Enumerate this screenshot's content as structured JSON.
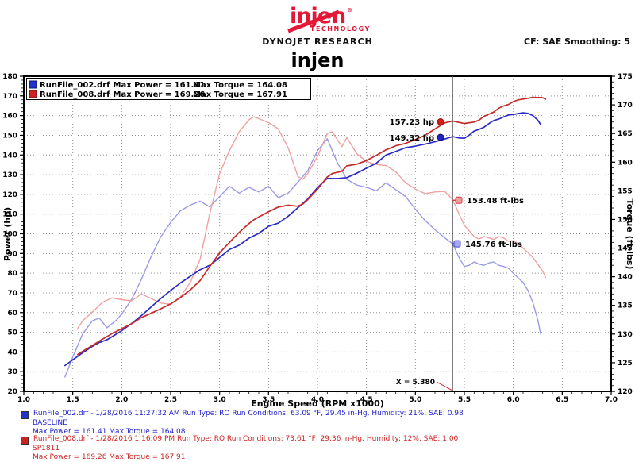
{
  "header": {
    "logo": {
      "brand": "injen",
      "mark": "®",
      "sub": "TECHNOLOGY"
    },
    "dyno_lab": "DYNOJET RESEARCH",
    "cf_label": "CF: SAE  Smoothing: 5",
    "title": "injen"
  },
  "chart": {
    "ylabel_left": "Power (hp)",
    "ylabel_right": "Torque (ft-lbs)",
    "xlabel": "Engine Speed (RPM x1000)",
    "legend_rows": [
      {
        "file": "RunFile_002.drf",
        "power": "Max Power = 161.41",
        "torque": "Max Torque = 164.08",
        "color": "#2233cc"
      },
      {
        "file": "RunFile_008.drf",
        "power": "Max Power = 169.26",
        "torque": "Max Torque = 167.91",
        "color": "#cc2222"
      }
    ],
    "cursor_label": "X = 5.380",
    "annotations": {
      "red_power": "157.23 hp",
      "blue_power": "149.32 hp",
      "red_torque": "153.48 ft-lbs",
      "blue_torque": "145.76 ft-lbs"
    },
    "colors": {
      "power_blue": "#2a2ac8",
      "torque_blue": "#9a9ae6",
      "power_red": "#c82a2a",
      "torque_red": "#f0a0a0",
      "grid": "#909090",
      "cursor": "#555555"
    }
  },
  "chart_data": {
    "type": "line",
    "title": "injen",
    "xlabel": "Engine Speed (RPM x1000)",
    "x_range": [
      1.0,
      7.0
    ],
    "power_axis": {
      "label": "Power (hp)",
      "range": [
        20,
        180
      ],
      "tick_step": 10
    },
    "torque_axis": {
      "label": "Torque (ft-lbs)",
      "range": [
        120,
        175
      ],
      "tick_step": 5
    },
    "grid": "dotted",
    "legend_position": "top-left",
    "cursor_x": 5.38,
    "power_ticks": [
      180,
      170,
      160,
      150,
      140,
      130,
      120,
      110,
      100,
      90,
      80,
      70,
      60,
      50,
      40,
      30,
      20
    ],
    "torque_ticks": [
      175,
      170,
      165,
      160,
      155,
      150,
      145,
      140,
      135,
      130,
      125,
      120
    ],
    "rpm_ticks": [
      "1.0",
      "1.5",
      "2.0",
      "2.5",
      "3.0",
      "3.5",
      "4.0",
      "4.5",
      "5.0",
      "5.5",
      "6.0",
      "6.5",
      "7.0"
    ],
    "series": [
      {
        "name": "RunFile_002.drf Torque",
        "axis": "torque",
        "color": "#9a9ae6",
        "x": [
          1.42,
          1.5,
          1.6,
          1.7,
          1.77,
          1.85,
          1.95,
          2.0,
          2.1,
          2.2,
          2.3,
          2.4,
          2.5,
          2.6,
          2.7,
          2.8,
          2.9,
          3.0,
          3.1,
          3.2,
          3.3,
          3.4,
          3.5,
          3.6,
          3.7,
          3.8,
          3.9,
          4.0,
          4.1,
          4.2,
          4.3,
          4.4,
          4.5,
          4.6,
          4.7,
          4.8,
          4.9,
          5.0,
          5.1,
          5.2,
          5.3,
          5.38,
          5.45,
          5.5,
          5.55,
          5.6,
          5.65,
          5.7,
          5.75,
          5.8,
          5.85,
          5.9,
          5.95,
          6.0,
          6.05,
          6.1,
          6.15,
          6.2,
          6.25,
          6.28
        ],
        "y": [
          122.5,
          126,
          130,
          132.3,
          132.8,
          131.1,
          132.5,
          133.5,
          136,
          139.5,
          143.5,
          147,
          149.5,
          151.5,
          152.5,
          153.2,
          152.2,
          154,
          155.8,
          154.6,
          155.6,
          154.8,
          155.8,
          153.8,
          154.6,
          156.5,
          158.5,
          162,
          164.08,
          160,
          157,
          156,
          155.6,
          155,
          156.4,
          155.2,
          154,
          151.8,
          149.8,
          148.2,
          146.8,
          145.76,
          143.2,
          141.8,
          142.0,
          142.6,
          142.2,
          142.0,
          142.4,
          142.6,
          142.0,
          141.8,
          141.5,
          140.6,
          139.8,
          139.0,
          137.6,
          135.5,
          132.5,
          130.0
        ]
      },
      {
        "name": "RunFile_008.drf Torque",
        "axis": "torque",
        "color": "#f0a0a0",
        "x": [
          1.55,
          1.6,
          1.73,
          1.8,
          1.9,
          2.0,
          2.1,
          2.2,
          2.3,
          2.4,
          2.5,
          2.6,
          2.7,
          2.8,
          2.9,
          3.0,
          3.1,
          3.2,
          3.3,
          3.35,
          3.4,
          3.5,
          3.6,
          3.7,
          3.8,
          3.85,
          3.9,
          4.0,
          4.1,
          4.15,
          4.25,
          4.3,
          4.4,
          4.5,
          4.6,
          4.7,
          4.8,
          4.9,
          5.0,
          5.1,
          5.2,
          5.3,
          5.38,
          5.45,
          5.5,
          5.55,
          5.6,
          5.65,
          5.7,
          5.75,
          5.8,
          5.85,
          5.9,
          5.95,
          6.0,
          6.05,
          6.1,
          6.15,
          6.2,
          6.25,
          6.3,
          6.33
        ],
        "y": [
          131,
          132.3,
          134.3,
          135.5,
          136.3,
          136.0,
          135.8,
          137.0,
          136.2,
          135.4,
          135.2,
          136.5,
          139.0,
          143.0,
          151.0,
          158.0,
          162.0,
          165.3,
          167.4,
          167.91,
          167.6,
          166.9,
          165.8,
          162.5,
          157.5,
          157.0,
          158.0,
          161.0,
          165.0,
          165.3,
          162.7,
          164.3,
          161.5,
          160.1,
          159.6,
          159.4,
          158.3,
          156.4,
          155.3,
          154.5,
          154.8,
          154.9,
          153.48,
          150.8,
          149.0,
          148.0,
          147.0,
          146.6,
          147.0,
          146.8,
          146.5,
          147.0,
          146.8,
          146.2,
          146.3,
          145.8,
          145.0,
          144.2,
          143.37,
          142.2,
          141.0,
          139.9
        ]
      },
      {
        "name": "RunFile_002.drf Power",
        "axis": "power",
        "color": "#2a2ac8",
        "x": [
          1.42,
          1.5,
          1.6,
          1.7,
          1.77,
          1.85,
          1.95,
          2.0,
          2.1,
          2.2,
          2.3,
          2.4,
          2.5,
          2.6,
          2.7,
          2.8,
          2.9,
          3.0,
          3.1,
          3.2,
          3.3,
          3.4,
          3.5,
          3.6,
          3.7,
          3.8,
          3.9,
          4.0,
          4.1,
          4.2,
          4.3,
          4.4,
          4.5,
          4.6,
          4.7,
          4.8,
          4.9,
          5.0,
          5.1,
          5.2,
          5.3,
          5.38,
          5.45,
          5.5,
          5.55,
          5.6,
          5.65,
          5.7,
          5.75,
          5.8,
          5.85,
          5.9,
          5.95,
          6.0,
          6.05,
          6.1,
          6.15,
          6.2,
          6.25,
          6.28
        ],
        "y": [
          33.1,
          36.0,
          39.6,
          42.8,
          44.8,
          46.2,
          49.2,
          50.8,
          54.4,
          58.4,
          62.8,
          67.2,
          71.2,
          75.0,
          78.4,
          81.7,
          84.0,
          88.0,
          92.0,
          94.2,
          97.8,
          100.2,
          103.8,
          105.4,
          108.9,
          113.2,
          117.7,
          123.4,
          128.1,
          128.0,
          128.5,
          130.7,
          133.3,
          135.8,
          140.0,
          141.8,
          143.7,
          144.5,
          145.5,
          146.7,
          148.1,
          149.32,
          148.6,
          148.5,
          150.1,
          152.1,
          153.0,
          154.1,
          155.9,
          157.5,
          158.2,
          159.3,
          160.3,
          160.6,
          161.0,
          161.41,
          161.1,
          160.0,
          157.7,
          155.4
        ]
      },
      {
        "name": "RunFile_008.drf Power",
        "axis": "power",
        "color": "#c82a2a",
        "x": [
          1.55,
          1.6,
          1.73,
          1.8,
          1.9,
          2.0,
          2.1,
          2.2,
          2.3,
          2.4,
          2.5,
          2.6,
          2.7,
          2.8,
          2.9,
          3.0,
          3.1,
          3.2,
          3.3,
          3.35,
          3.4,
          3.5,
          3.6,
          3.7,
          3.8,
          3.85,
          3.9,
          4.0,
          4.1,
          4.15,
          4.25,
          4.3,
          4.4,
          4.5,
          4.6,
          4.7,
          4.8,
          4.9,
          5.0,
          5.1,
          5.2,
          5.3,
          5.38,
          5.45,
          5.5,
          5.55,
          5.6,
          5.65,
          5.7,
          5.75,
          5.8,
          5.85,
          5.9,
          5.95,
          6.0,
          6.05,
          6.1,
          6.15,
          6.2,
          6.25,
          6.3,
          6.33
        ],
        "y": [
          38.7,
          40.3,
          44.2,
          46.4,
          49.3,
          51.8,
          54.3,
          57.4,
          59.6,
          61.9,
          64.4,
          67.6,
          71.5,
          76.2,
          83.4,
          90.3,
          95.6,
          100.7,
          105.2,
          107.1,
          108.5,
          111.2,
          113.6,
          114.5,
          114.0,
          115.1,
          117.3,
          122.6,
          128.8,
          130.6,
          131.7,
          134.5,
          135.3,
          137.2,
          139.8,
          142.6,
          144.7,
          145.9,
          147.8,
          150.0,
          153.2,
          156.3,
          157.23,
          156.5,
          156.0,
          156.4,
          156.7,
          157.7,
          159.6,
          160.7,
          161.8,
          163.7,
          164.9,
          165.6,
          167.1,
          168.0,
          168.4,
          168.8,
          169.26,
          169.2,
          169.1,
          168.3
        ]
      }
    ],
    "annotations": [
      {
        "text": "157.23 hp",
        "x": 5.38,
        "value": 157.23,
        "axis": "power",
        "series": "RunFile_008.drf Power"
      },
      {
        "text": "149.32 hp",
        "x": 5.38,
        "value": 149.32,
        "axis": "power",
        "series": "RunFile_002.drf Power"
      },
      {
        "text": "153.48 ft-lbs",
        "x": 5.38,
        "value": 153.48,
        "axis": "torque",
        "series": "RunFile_008.drf Torque"
      },
      {
        "text": "145.76 ft-lbs",
        "x": 5.38,
        "value": 145.76,
        "axis": "torque",
        "series": "RunFile_002.drf Torque"
      }
    ]
  },
  "footer": {
    "runs": [
      {
        "line1": "RunFile_002.drf - 1/28/2016 11:27:32 AM  Run Type: RO  Run Conditions: 63.09 °F, 29.45 in-Hg,  Humidity:  21%, SAE: 0.98",
        "line2": "BASELINE",
        "line3": "Max Power = 161.41  Max Torque = 164.08"
      },
      {
        "line1": "RunFile_008.drf - 1/28/2016 1:16:09 PM  Run Type: RO  Run Conditions: 73.61 °F, 29.36 in-Hg,  Humidity:  12%, SAE: 1.00",
        "line2": "SP1811",
        "line3": "Max Power = 169.26  Max Torque = 167.91"
      }
    ]
  }
}
